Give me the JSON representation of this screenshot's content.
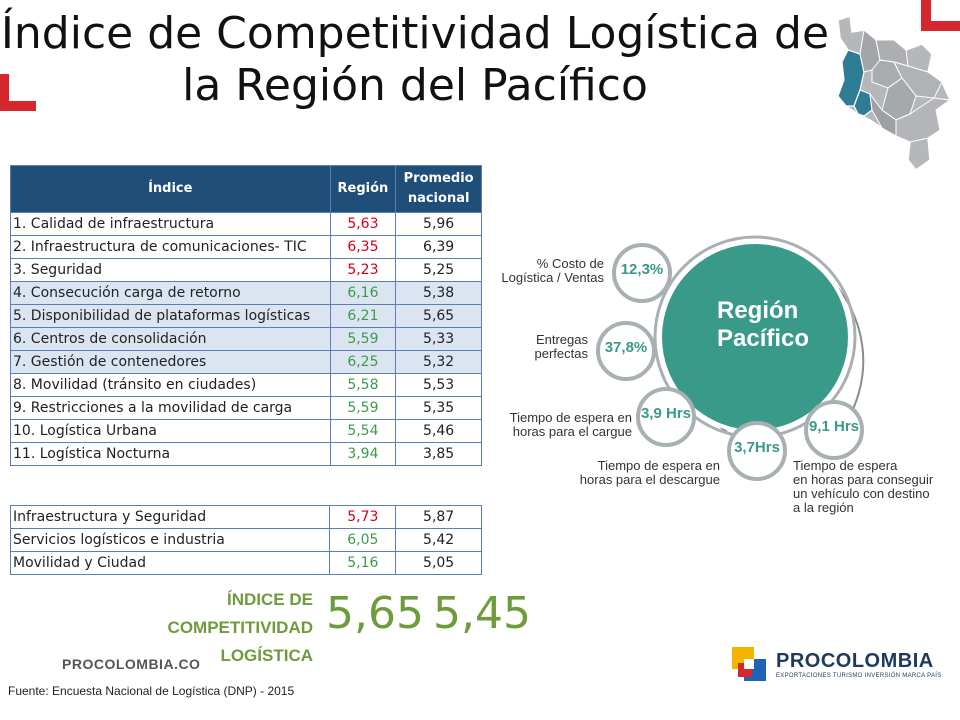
{
  "title": {
    "line1": "Índice de Competitividad Logística de",
    "line2": "la Región del Pacífico"
  },
  "table": {
    "headers": [
      "Índice",
      "Región",
      "Promedio nacional"
    ],
    "rows": [
      {
        "name": "1. Calidad de infraestructura",
        "region": "5,63",
        "nacional": "5,96"
      },
      {
        "name": "2. Infraestructura de comunicaciones- TIC",
        "region": "6,35",
        "nacional": "6,39"
      },
      {
        "name": "3. Seguridad",
        "region": "5,23",
        "nacional": "5,25"
      },
      {
        "name": "4. Consecución carga de retorno",
        "region": "6,16",
        "nacional": "5,38"
      },
      {
        "name": "5. Disponibilidad de plataformas logísticas",
        "region": "6,21",
        "nacional": "5,65"
      },
      {
        "name": "6. Centros de consolidación",
        "region": "5,59",
        "nacional": "5,33"
      },
      {
        "name": "7. Gestión de contenedores",
        "region": "6,25",
        "nacional": "5,32"
      },
      {
        "name": "8. Movilidad (tránsito en ciudades)",
        "region": "5,58",
        "nacional": "5,53"
      },
      {
        "name": "9. Restricciones a la movilidad de carga",
        "region": "5,59",
        "nacional": "5,35"
      },
      {
        "name": "10. Logística Urbana",
        "region": "5,54",
        "nacional": "5,46"
      },
      {
        "name": "11. Logística Nocturna",
        "region": "3,94",
        "nacional": "3,85"
      }
    ]
  },
  "summary": {
    "rows": [
      {
        "name": "Infraestructura y Seguridad",
        "region": "5,73",
        "nacional": "5,87"
      },
      {
        "name": "Servicios logísticos e industria",
        "region": "6,05",
        "nacional": "5,42"
      },
      {
        "name": "Movilidad y Ciudad",
        "region": "5,16",
        "nacional": "5,05"
      }
    ]
  },
  "score": {
    "label_line1": "ÍNDICE DE COMPETITIVIDAD",
    "label_line2": "LOGÍSTICA",
    "region": "5,65",
    "nacional": "5,45"
  },
  "infographic": {
    "center_line1": "Región",
    "center_line2": "Pacífico",
    "metrics": [
      {
        "value": "12,3%",
        "label_line1": "% Costo de",
        "label_line2": "Logística / Ventas"
      },
      {
        "value": "37,8%",
        "label_line1": "Entregas",
        "label_line2": "perfectas"
      },
      {
        "value": "3,9 Hrs",
        "label_line1": "Tiempo de espera en",
        "label_line2": "horas para el cargue"
      },
      {
        "value": "3,7Hrs",
        "label_line1": "Tiempo de espera en",
        "label_line2": "horas para el descargue"
      },
      {
        "value": "9,1 Hrs",
        "label_line1": "Tiempo de espera",
        "label_line2": "en horas para conseguir",
        "label_line3": "un vehículo con destino",
        "label_line4": "a la región"
      }
    ]
  },
  "footer": {
    "url": "PROCOLOMBIA.CO",
    "source": "Fuente: Encuesta Nacional de Logística (DNP) - 2015",
    "logo_name": "PROCOLOMBIA",
    "logo_tagline": "EXPORTACIONES TURISMO INVERSIÓN MARCA PAÍS"
  },
  "colors": {
    "header": "#1f4e79",
    "region_red": "#d0021b",
    "region_green": "#3d9b4a",
    "score_green": "#6e9b3b",
    "teal": "#3a9a8a",
    "accent_red": "#d6262e"
  }
}
